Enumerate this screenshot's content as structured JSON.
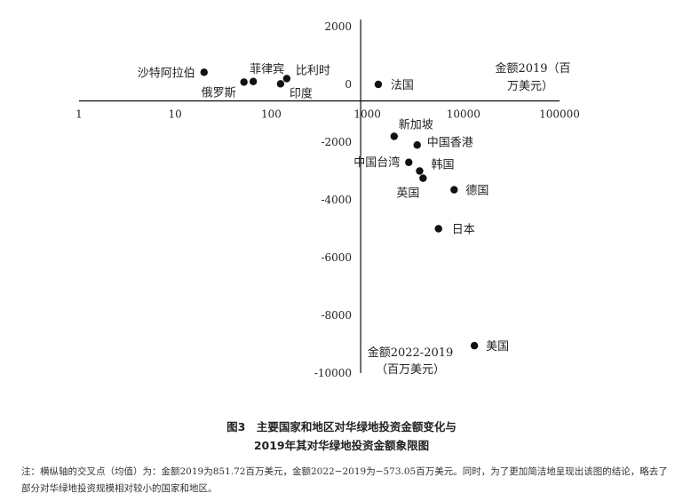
{
  "chart_data": {
    "type": "scatter",
    "x_scale": "log",
    "x_ticks": [
      "1",
      "10",
      "100",
      "1000",
      "10000",
      "100000"
    ],
    "x_tick_values": [
      1,
      10,
      100,
      1000,
      10000,
      100000
    ],
    "y_ticks": [
      "2000",
      "0",
      "-2000",
      "-4000",
      "-6000",
      "-8000",
      "-10000"
    ],
    "y_tick_values": [
      2000,
      0,
      -2000,
      -4000,
      -6000,
      -8000,
      -10000
    ],
    "xlim": [
      1,
      100000
    ],
    "ylim": [
      -10000,
      2000
    ],
    "x_cross": 851.72,
    "y_cross": -573.05,
    "xlabel_line1": "金额2019（百",
    "xlabel_line2": "万美元）",
    "ylabel_line1": "金额2022-2019",
    "ylabel_line2": "（百万美元）",
    "points": [
      {
        "label": "沙特阿拉伯",
        "x": 20,
        "y": 420
      },
      {
        "label": "俄罗斯",
        "x": 52,
        "y": 80
      },
      {
        "label": "菲律宾",
        "x": 65,
        "y": 100
      },
      {
        "label": "印度",
        "x": 125,
        "y": 20
      },
      {
        "label": "比利时",
        "x": 145,
        "y": 200
      },
      {
        "label": "法国",
        "x": 1300,
        "y": 0
      },
      {
        "label": "新加坡",
        "x": 1900,
        "y": -1800
      },
      {
        "label": "中国香港",
        "x": 3300,
        "y": -2100
      },
      {
        "label": "中国台湾",
        "x": 2700,
        "y": -2700
      },
      {
        "label": "韩国",
        "x": 3500,
        "y": -3000
      },
      {
        "label": "英国",
        "x": 3800,
        "y": -3250
      },
      {
        "label": "德国",
        "x": 8000,
        "y": -3650
      },
      {
        "label": "日本",
        "x": 5500,
        "y": -5000
      },
      {
        "label": "美国",
        "x": 13000,
        "y": -9050
      }
    ]
  },
  "caption": {
    "line1": "图3　主要国家和地区对华绿地投资金额变化与",
    "line2": "2019年其对华绿地投资金额象限图"
  },
  "note": "注：横纵轴的交叉点（均值）为：金额2019为851.72百万美元，金额2022−2019为−573.05百万美元。同时，为了更加简洁地呈现出该图的结论，略去了部分对华绿地投资规模相对较小的国家和地区。"
}
